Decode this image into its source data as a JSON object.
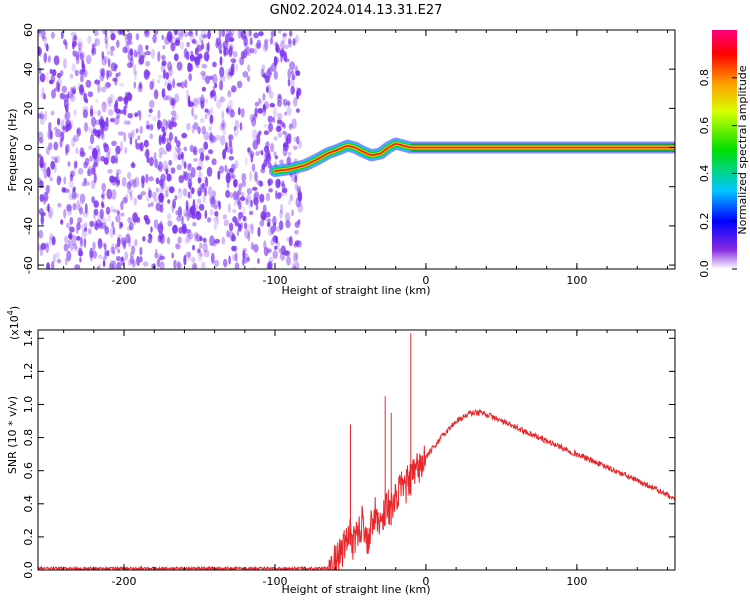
{
  "title": "GN02.2024.014.13.31.E27",
  "colors": {
    "noise": "#7a2ff0",
    "snr_line": "#e8262b",
    "ridge": "#ff1a1a"
  },
  "chart_data": [
    {
      "type": "heatmap",
      "xlabel": "Height of straight line (km)",
      "ylabel": "Frequency (Hz)",
      "xlim": [
        -257,
        165
      ],
      "ylim": [
        -62,
        60
      ],
      "xticks": [
        -200,
        -100,
        0,
        100
      ],
      "xtick_labels": [
        "-200",
        "-100",
        "0",
        "100"
      ],
      "yticks": [
        -60,
        -40,
        -20,
        0,
        20,
        40,
        60
      ],
      "ytick_labels": [
        "-60",
        "-40",
        "-20",
        "0",
        "20",
        "40",
        "60"
      ],
      "grid": false,
      "colorbar": {
        "label": "Normalized spectral amplitude",
        "range": [
          0,
          1
        ],
        "ticks": [
          0.0,
          0.2,
          0.4,
          0.6,
          0.8
        ],
        "tick_labels": [
          "0.0",
          "0.2",
          "0.4",
          "0.6",
          "0.8"
        ]
      },
      "noise_region_x": [
        -257,
        -83
      ],
      "signal_ridge": {
        "x": [
          -100,
          -90,
          -80,
          -72,
          -65,
          -58,
          -52,
          -47,
          -42,
          -36,
          -30,
          -25,
          -20,
          -15,
          -10,
          0,
          165
        ],
        "y": [
          -12,
          -11,
          -9,
          -6,
          -3,
          -1,
          1,
          0,
          -2,
          -4,
          -3,
          0,
          2,
          1,
          0,
          0,
          0
        ]
      }
    },
    {
      "type": "line",
      "xlabel": "Height of straight line (km)",
      "ylabel": "SNR (10 * v/v)",
      "y_multiplier_label": "(x10",
      "y_multiplier_exp": "4",
      "xlim": [
        -257,
        165
      ],
      "ylim": [
        0,
        1.45
      ],
      "xticks": [
        -200,
        -100,
        0,
        100
      ],
      "xtick_labels": [
        "-200",
        "-100",
        "0",
        "100"
      ],
      "yticks": [
        0.0,
        0.2,
        0.4,
        0.6,
        0.8,
        1.0,
        1.2,
        1.4
      ],
      "ytick_labels": [
        "0.0",
        "0.2",
        "0.4",
        "0.6",
        "0.8",
        "1.0",
        "1.2",
        "1.4"
      ],
      "grid": false,
      "series": [
        {
          "x": [
            -257,
            -200,
            -150,
            -100,
            -70,
            -62,
            -58,
            -55,
            -52,
            -50,
            -48,
            -45,
            -42,
            -38,
            -35,
            -30,
            -26,
            -22,
            -18,
            -14,
            -10,
            -6,
            0,
            10,
            20,
            30,
            38,
            50,
            60,
            70,
            80,
            90,
            100,
            110,
            120,
            130,
            140,
            150,
            160,
            165
          ],
          "y": [
            0.01,
            0.01,
            0.01,
            0.01,
            0.01,
            0.02,
            0.08,
            0.12,
            0.18,
            0.25,
            0.15,
            0.22,
            0.3,
            0.18,
            0.35,
            0.28,
            0.4,
            0.36,
            0.48,
            0.5,
            0.55,
            0.6,
            0.68,
            0.8,
            0.9,
            0.95,
            0.95,
            0.9,
            0.86,
            0.82,
            0.78,
            0.74,
            0.7,
            0.66,
            0.62,
            0.58,
            0.54,
            0.5,
            0.45,
            0.42
          ]
        }
      ],
      "spikes": [
        {
          "x": -50,
          "y": 0.88
        },
        {
          "x": -27,
          "y": 1.05
        },
        {
          "x": -23,
          "y": 0.95
        },
        {
          "x": -10,
          "y": 1.43
        }
      ]
    }
  ]
}
